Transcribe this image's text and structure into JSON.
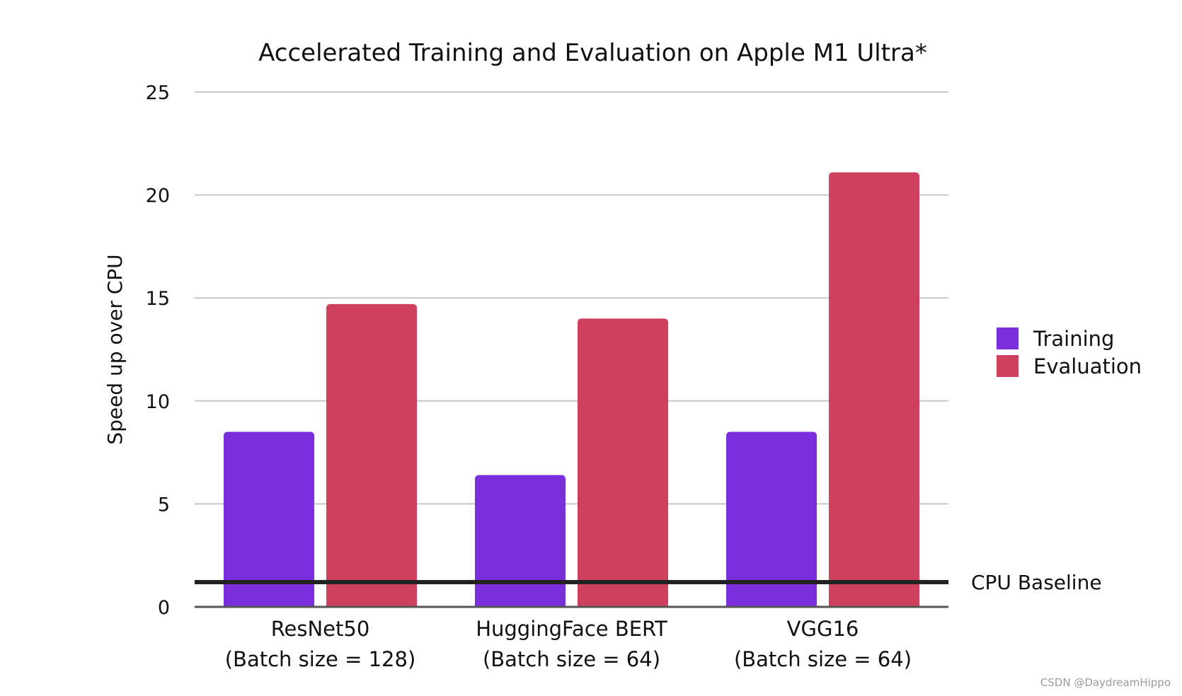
{
  "chart_data": {
    "type": "bar",
    "title": "Accelerated Training and Evaluation on Apple M1 Ultra*",
    "xlabel": "",
    "ylabel": "Speed up over CPU",
    "ylim": [
      0,
      25
    ],
    "yticks": [
      0,
      5,
      10,
      15,
      20,
      25
    ],
    "grid": true,
    "legend_position": "right",
    "categories": [
      [
        "ResNet50",
        "(Batch size = 128)"
      ],
      [
        "HuggingFace BERT",
        "(Batch size = 64)"
      ],
      [
        "VGG16",
        "(Batch size = 64)"
      ]
    ],
    "series": [
      {
        "name": "Training",
        "color": "#7b2fdc",
        "values": [
          8.5,
          6.4,
          8.5
        ]
      },
      {
        "name": "Evaluation",
        "color": "#cf3f5e",
        "values": [
          14.7,
          14.0,
          21.1
        ]
      }
    ],
    "baseline": {
      "label": "CPU Baseline",
      "value": 1.2,
      "color": "#222222"
    }
  },
  "watermark": "CSDN @DaydreamHippo"
}
